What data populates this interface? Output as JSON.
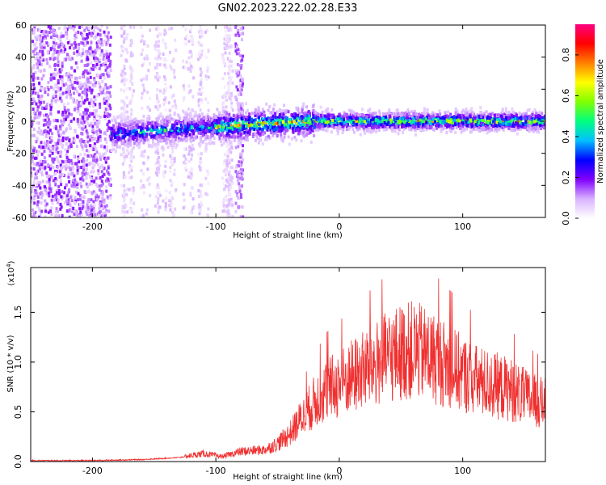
{
  "figure": {
    "title": "GN02.2023.222.02.28.E33"
  },
  "chart_data": [
    {
      "type": "heatmap",
      "title": "GN02.2023.222.02.28.E33",
      "xlabel": "Height of straight line (km)",
      "ylabel": "Frequency (Hz)",
      "xlim": [
        -250,
        167
      ],
      "ylim": [
        -60,
        60
      ],
      "xticks": [
        -200,
        -100,
        0,
        100
      ],
      "xtick_labels": [
        "-200",
        "-100",
        "0",
        "100"
      ],
      "yticks": [
        -60,
        -40,
        -20,
        0,
        20,
        40,
        60
      ],
      "ytick_labels": [
        "-60",
        "-40",
        "-20",
        "0",
        "20",
        "40",
        "60"
      ],
      "colorbar": {
        "label": "Normalized spectral amplitude",
        "range": [
          0,
          0.95
        ],
        "ticks": [
          0.0,
          0.2,
          0.4,
          0.6,
          0.8
        ],
        "tick_labels": [
          "0.0",
          "0.2",
          "0.4",
          "0.6",
          "0.8"
        ],
        "colormap": [
          "#ffffff",
          "#d9b3ff",
          "#8000ff",
          "#0000ff",
          "#00c0ff",
          "#00ff80",
          "#80ff00",
          "#ffff00",
          "#ff8000",
          "#ff0000",
          "#ff0080"
        ]
      },
      "features": [
        {
          "name": "broadband noise region",
          "x_range": [
            -250,
            -185
          ],
          "y_range": [
            -60,
            60
          ],
          "level": 0.15
        },
        {
          "name": "scattered vertical streaks",
          "x_range": [
            -185,
            -78
          ],
          "y_range": [
            -60,
            60
          ],
          "level": 0.08
        },
        {
          "name": "dense streak",
          "x_range": [
            -84,
            -78
          ],
          "y_range": [
            -60,
            60
          ],
          "level": 0.12
        },
        {
          "name": "central signal band",
          "x_range": [
            -185,
            167
          ],
          "y_center": [
            -8,
            -3,
            0,
            0
          ],
          "y_center_x": [
            -185,
            -90,
            -20,
            167
          ],
          "level": 0.9
        }
      ]
    },
    {
      "type": "line",
      "xlabel": "Height of straight line (km)",
      "ylabel": "SNR (10 * v/v)",
      "yscale_note": "(x10",
      "yscale_exponent": "4",
      "xlim": [
        -250,
        167
      ],
      "ylim": [
        0,
        1.95
      ],
      "xticks": [
        -200,
        -100,
        0,
        100
      ],
      "xtick_labels": [
        "-200",
        "-100",
        "0",
        "100"
      ],
      "yticks": [
        0.0,
        0.5,
        1.0,
        1.5
      ],
      "ytick_labels": [
        "0.0",
        "0.5",
        "1.0",
        "1.5"
      ],
      "color": "#f03030",
      "series": [
        {
          "x": [
            -250,
            -200,
            -160,
            -130,
            -110,
            -95,
            -80,
            -60,
            -50,
            -40,
            -30,
            -20,
            -10,
            0,
            10,
            20,
            30,
            40,
            50,
            60,
            70,
            80,
            90,
            100,
            110,
            120,
            130,
            140,
            150,
            160,
            167
          ],
          "y": [
            0.01,
            0.01,
            0.02,
            0.04,
            0.08,
            0.05,
            0.1,
            0.12,
            0.18,
            0.28,
            0.45,
            0.6,
            0.72,
            0.78,
            0.85,
            0.92,
            0.98,
            1.05,
            1.1,
            1.12,
            1.08,
            1.02,
            0.95,
            0.88,
            0.82,
            0.78,
            0.75,
            0.72,
            0.65,
            0.6,
            0.58
          ]
        }
      ]
    }
  ]
}
